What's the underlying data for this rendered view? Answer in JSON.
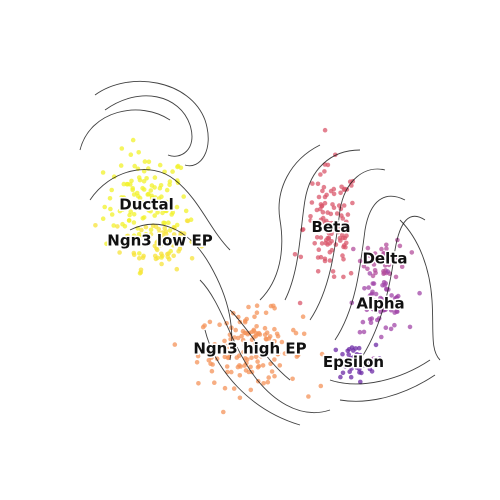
{
  "chart_data": {
    "type": "scatter",
    "title": "",
    "xlabel": "",
    "ylabel": "",
    "grid": false,
    "legend": "none",
    "overlay": "velocity-streamlines",
    "xlim": [
      0,
      10
    ],
    "ylim": [
      0,
      10
    ],
    "clusters": [
      {
        "name": "Ductal",
        "color": "#f2f22a",
        "center": [
          2.7,
          6.0
        ]
      },
      {
        "name": "Ngn3 low EP",
        "color": "#f7e33a",
        "center": [
          3.0,
          5.2
        ]
      },
      {
        "name": "Ngn3 high EP",
        "color": "#f4935a",
        "center": [
          5.0,
          2.8
        ]
      },
      {
        "name": "Beta",
        "color": "#d9576b",
        "center": [
          6.8,
          5.5
        ]
      },
      {
        "name": "Delta",
        "color": "#b44f9c",
        "center": [
          8.0,
          4.8
        ]
      },
      {
        "name": "Alpha",
        "color": "#a147a8",
        "center": [
          7.9,
          3.8
        ]
      },
      {
        "name": "Epsilon",
        "color": "#6c2aa6",
        "center": [
          7.3,
          2.5
        ]
      }
    ]
  }
}
